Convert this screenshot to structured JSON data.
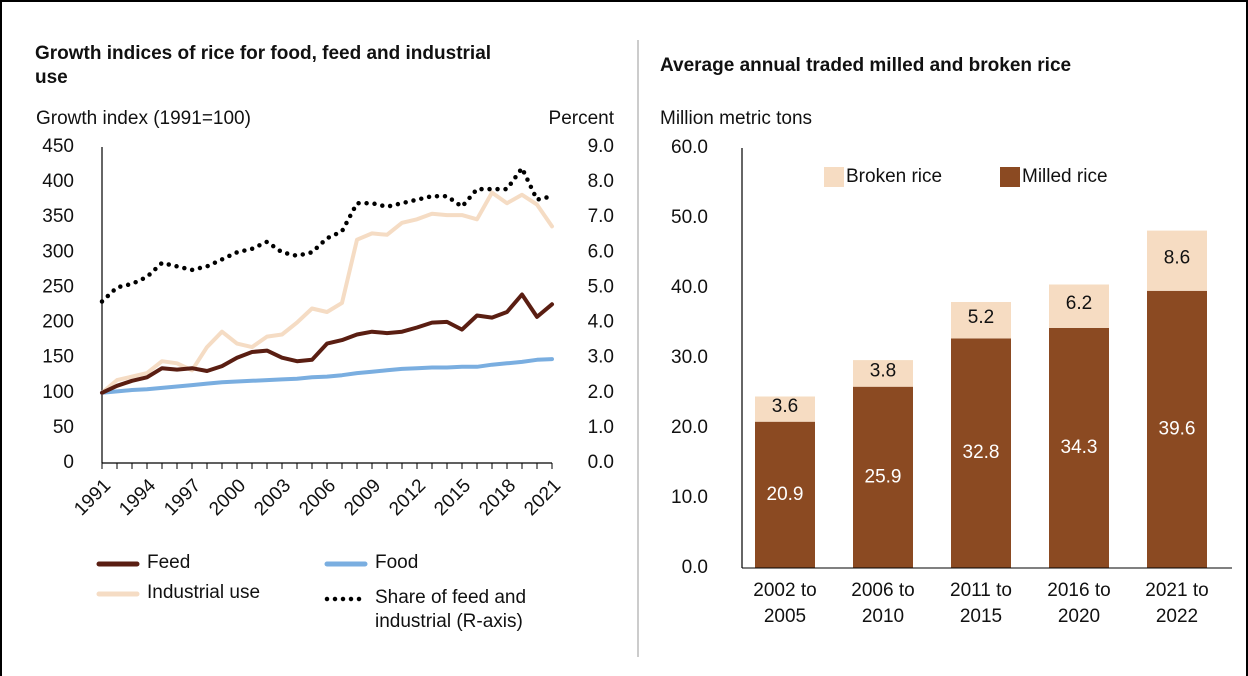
{
  "chart_data": [
    {
      "type": "line",
      "title": "Growth indices of rice for food, feed and industrial use",
      "y_label": "Growth index (1991=100)",
      "y2_label": "Percent",
      "x": [
        1991,
        1992,
        1993,
        1994,
        1995,
        1996,
        1997,
        1998,
        1999,
        2000,
        2001,
        2002,
        2003,
        2004,
        2005,
        2006,
        2007,
        2008,
        2009,
        2010,
        2011,
        2012,
        2013,
        2014,
        2015,
        2016,
        2017,
        2018,
        2019,
        2020,
        2021
      ],
      "xlim": [
        1991,
        2021
      ],
      "xticks": [
        1991,
        1994,
        1997,
        2000,
        2003,
        2006,
        2009,
        2012,
        2015,
        2018,
        2021
      ],
      "ylim": [
        0,
        450
      ],
      "yticks": [
        0,
        50,
        100,
        150,
        200,
        250,
        300,
        350,
        400,
        450
      ],
      "y2lim": [
        0,
        9
      ],
      "y2ticks": [
        {
          "value": 0,
          "label": "0.0"
        },
        {
          "value": 1,
          "label": "1.0"
        },
        {
          "value": 2,
          "label": "2.0"
        },
        {
          "value": 3,
          "label": "3.0"
        },
        {
          "value": 4,
          "label": "4.0"
        },
        {
          "value": 5,
          "label": "5.0"
        },
        {
          "value": 6,
          "label": "6.0"
        },
        {
          "value": 7,
          "label": "7.0"
        },
        {
          "value": 8,
          "label": "8.0"
        },
        {
          "value": 9,
          "label": "9.0"
        }
      ],
      "series": [
        {
          "name": "Feed",
          "color": "#5a1e12",
          "values": [
            100,
            110,
            117,
            122,
            135,
            133,
            135,
            131,
            138,
            150,
            158,
            160,
            150,
            145,
            147,
            170,
            175,
            183,
            187,
            185,
            187,
            193,
            200,
            201,
            190,
            210,
            207,
            215,
            240,
            208,
            226
          ]
        },
        {
          "name": "Food",
          "color": "#7aaee0",
          "values": [
            100,
            102,
            104,
            105,
            107,
            109,
            111,
            113,
            115,
            116,
            117,
            118,
            119,
            120,
            122,
            123,
            125,
            128,
            130,
            132,
            134,
            135,
            136,
            136,
            137,
            137,
            140,
            142,
            144,
            147,
            148
          ]
        },
        {
          "name": "Industrial use",
          "color": "#f5dcc4",
          "values": [
            100,
            118,
            123,
            128,
            145,
            142,
            132,
            165,
            187,
            170,
            165,
            180,
            183,
            200,
            220,
            215,
            228,
            318,
            327,
            325,
            342,
            347,
            355,
            353,
            353,
            347,
            385,
            370,
            382,
            368,
            337
          ]
        },
        {
          "name": "Share of feed and industrial (R-axis)",
          "color": "#000000",
          "dotted": true,
          "axis": "y2",
          "values": [
            4.6,
            5.0,
            5.1,
            5.3,
            5.7,
            5.6,
            5.5,
            5.6,
            5.8,
            6.0,
            6.1,
            6.3,
            6.0,
            5.9,
            6.0,
            6.4,
            6.6,
            7.4,
            7.4,
            7.3,
            7.4,
            7.5,
            7.6,
            7.6,
            7.3,
            7.8,
            7.8,
            7.8,
            8.4,
            7.5,
            7.6
          ]
        }
      ]
    },
    {
      "type": "stacked_bar",
      "title": "Average annual traded milled and broken rice",
      "y_label": "Million metric tons",
      "categories": [
        "2002 to 2005",
        "2006 to 2010",
        "2011 to 2015",
        "2016 to 2020",
        "2021 to 2022"
      ],
      "ylim": [
        0,
        60
      ],
      "yticks": [
        {
          "value": 0,
          "label": "0.0"
        },
        {
          "value": 10,
          "label": "10.0"
        },
        {
          "value": 20,
          "label": "20.0"
        },
        {
          "value": 30,
          "label": "30.0"
        },
        {
          "value": 40,
          "label": "40.0"
        },
        {
          "value": 50,
          "label": "50.0"
        },
        {
          "value": 60,
          "label": "60.0"
        }
      ],
      "legend": "top",
      "series": [
        {
          "name": "Milled rice",
          "color": "#8b4a22",
          "values": [
            20.9,
            25.9,
            32.8,
            34.3,
            39.6
          ]
        },
        {
          "name": "Broken rice",
          "color": "#f6dcc2",
          "values": [
            3.6,
            3.8,
            5.2,
            6.2,
            8.6
          ]
        }
      ]
    }
  ]
}
